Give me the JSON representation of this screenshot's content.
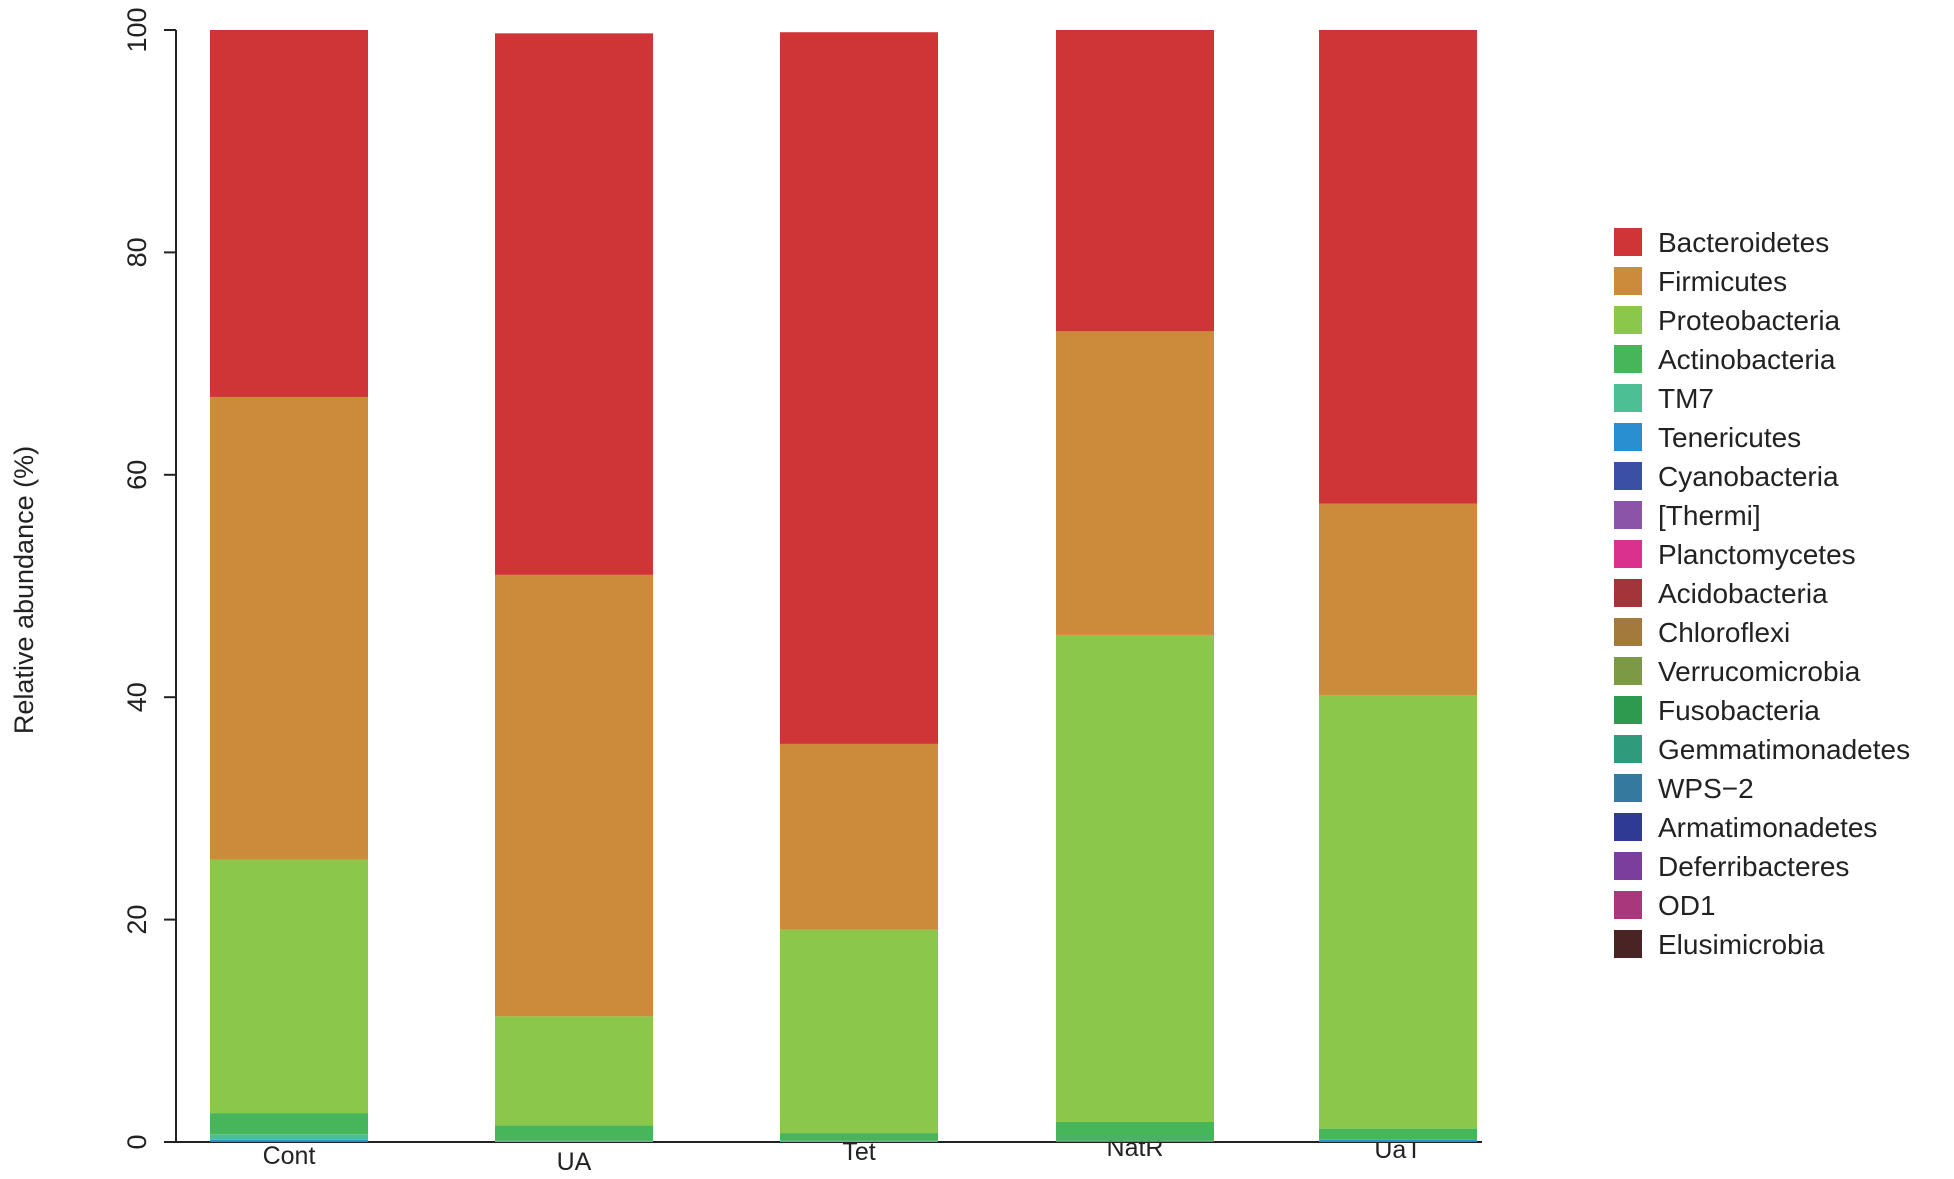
{
  "chart_data": {
    "type": "bar",
    "stacked": true,
    "ylabel": "Relative abundance (%)",
    "xlabel": "",
    "ylim": [
      0,
      100
    ],
    "yticks": [
      0,
      20,
      40,
      60,
      80,
      100
    ],
    "grid": false,
    "legend_position": "right",
    "categories": [
      "Cont",
      "UA",
      "Tet",
      "NatR",
      "UaT"
    ],
    "series": [
      {
        "name": "Bacteroidetes",
        "color": "#cf3436",
        "values": [
          33.0,
          48.7,
          64.0,
          27.1,
          42.6
        ]
      },
      {
        "name": "Firmicutes",
        "color": "#cc8b3a",
        "values": [
          41.6,
          39.7,
          16.7,
          27.3,
          17.2
        ]
      },
      {
        "name": "Proteobacteria",
        "color": "#8bc74b",
        "values": [
          22.8,
          9.8,
          18.3,
          43.8,
          39.0
        ]
      },
      {
        "name": "Actinobacteria",
        "color": "#47b55a",
        "values": [
          1.9,
          1.4,
          0.7,
          1.7,
          1.0
        ]
      },
      {
        "name": "TM7",
        "color": "#4cbf94",
        "values": [
          0.5,
          0.1,
          0.1,
          0.0,
          0.0
        ]
      },
      {
        "name": "Tenericutes",
        "color": "#2a8fce",
        "values": [
          0.2,
          0.0,
          0.0,
          0.1,
          0.2
        ]
      },
      {
        "name": "Cyanobacteria",
        "color": "#3b4fa5",
        "values": [
          0.0,
          0.0,
          0.0,
          0.0,
          0.0
        ]
      },
      {
        "name": "[Thermi]",
        "color": "#8b54a8",
        "values": [
          0.0,
          0.0,
          0.0,
          0.0,
          0.0
        ]
      },
      {
        "name": "Planctomycetes",
        "color": "#d8328e",
        "values": [
          0.0,
          0.0,
          0.0,
          0.0,
          0.0
        ]
      },
      {
        "name": "Acidobacteria",
        "color": "#a2343a",
        "values": [
          0.0,
          0.0,
          0.0,
          0.0,
          0.0
        ]
      },
      {
        "name": "Chloroflexi",
        "color": "#a37a3c",
        "values": [
          0.0,
          0.0,
          0.0,
          0.0,
          0.0
        ]
      },
      {
        "name": "Verrucomicrobia",
        "color": "#7c9a45",
        "values": [
          0.0,
          0.0,
          0.0,
          0.0,
          0.0
        ]
      },
      {
        "name": "Fusobacteria",
        "color": "#2e9a4f",
        "values": [
          0.0,
          0.0,
          0.0,
          0.0,
          0.0
        ]
      },
      {
        "name": "Gemmatimonadetes",
        "color": "#2f9b7c",
        "values": [
          0.0,
          0.0,
          0.0,
          0.0,
          0.0
        ]
      },
      {
        "name": "WPS−2",
        "color": "#357a9e",
        "values": [
          0.0,
          0.0,
          0.0,
          0.0,
          0.0
        ]
      },
      {
        "name": "Armatimonadetes",
        "color": "#2f3a94",
        "values": [
          0.0,
          0.0,
          0.0,
          0.0,
          0.0
        ]
      },
      {
        "name": "Deferribacteres",
        "color": "#7a3f9c",
        "values": [
          0.0,
          0.0,
          0.0,
          0.0,
          0.0
        ]
      },
      {
        "name": "OD1",
        "color": "#a8377b",
        "values": [
          0.0,
          0.0,
          0.0,
          0.0,
          0.0
        ]
      },
      {
        "name": "Elusimicrobia",
        "color": "#4a2324",
        "values": [
          0.0,
          0.0,
          0.0,
          0.0,
          0.0
        ]
      }
    ]
  }
}
